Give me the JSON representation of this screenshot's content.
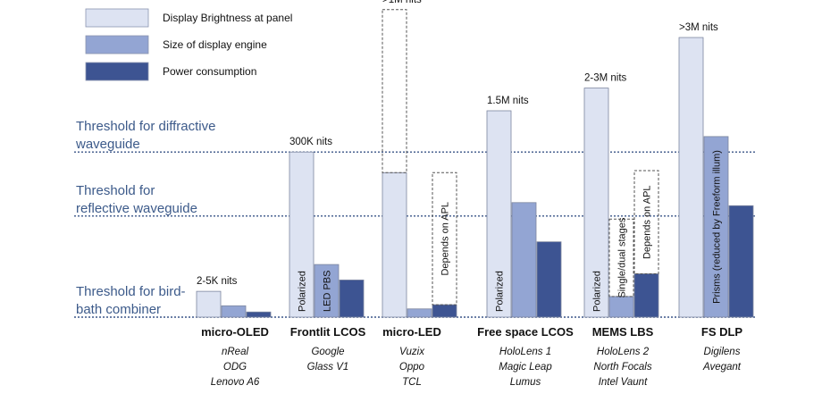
{
  "chart_data": {
    "type": "bar",
    "legend": [
      {
        "name": "Display Brightness at panel",
        "color": "#dde3f2"
      },
      {
        "name": "Size of display engine",
        "color": "#93a5d3"
      },
      {
        "name": "Power consumption",
        "color": "#3d5492"
      }
    ],
    "thresholds": [
      {
        "label_lines": [
          "Threshold for diffractive",
          "waveguide"
        ],
        "level": 0.8
      },
      {
        "label_lines": [
          "Threshold for",
          "reflective waveguide"
        ],
        "level": 0.49
      },
      {
        "label_lines": [
          "Threshold for bird-",
          "bath combiner"
        ],
        "level": 0.0
      }
    ],
    "groups": [
      {
        "category": "micro-OLED",
        "examples": [
          "nReal",
          "ODG",
          "Lenovo A6"
        ],
        "brightness_label": "2-5K  nits",
        "bars": [
          {
            "series": "brightness",
            "value": 0.125,
            "dashed": false,
            "text": ""
          },
          {
            "series": "size",
            "value": 0.055,
            "dashed": false,
            "text": ""
          },
          {
            "series": "power",
            "value": 0.025,
            "dashed": false,
            "text": ""
          }
        ]
      },
      {
        "category": "Frontlit LCOS",
        "examples": [
          "Google",
          "Glass V1"
        ],
        "brightness_label": "300K  nits",
        "bars": [
          {
            "series": "brightness",
            "value": 0.8,
            "dashed": false,
            "text": "Polarized"
          },
          {
            "series": "size",
            "value": 0.255,
            "dashed": false,
            "text": "LED PBS"
          },
          {
            "series": "power",
            "value": 0.18,
            "dashed": false,
            "text": ""
          }
        ]
      },
      {
        "category": "micro-LED",
        "examples": [
          "Vuzix",
          "Oppo",
          "TCL"
        ],
        "brightness_label": ">1M nits",
        "bars": [
          {
            "series": "brightness",
            "value": 0.7,
            "dashed": false,
            "text": "",
            "dashed_top": 1.49
          },
          {
            "series": "size",
            "value": 0.04,
            "dashed": false,
            "text": ""
          },
          {
            "series": "power",
            "value": 0.06,
            "dashed": false,
            "text": "",
            "dashed_top": 0.7,
            "dashed_text": "Depends on APL"
          }
        ]
      },
      {
        "category": "Free space LCOS",
        "examples": [
          "HoloLens 1",
          "Magic Leap",
          "Lumus"
        ],
        "brightness_label": "1.5M nits",
        "bars": [
          {
            "series": "brightness",
            "value": 1.0,
            "dashed": false,
            "text": "Polarized"
          },
          {
            "series": "size",
            "value": 0.555,
            "dashed": false,
            "text": ""
          },
          {
            "series": "power",
            "value": 0.365,
            "dashed": false,
            "text": ""
          }
        ]
      },
      {
        "category": "MEMS LBS",
        "examples": [
          "HoloLens 2",
          "North Focals",
          "Intel Vaunt"
        ],
        "brightness_label": "2-3M nits",
        "bars": [
          {
            "series": "brightness",
            "value": 1.11,
            "dashed": false,
            "text": "Polarized"
          },
          {
            "series": "size",
            "value": 0.1,
            "dashed": false,
            "text": "",
            "dashed_top": 0.475,
            "dashed_text": "Single/dual stages"
          },
          {
            "series": "power",
            "value": 0.21,
            "dashed": false,
            "text": "",
            "dashed_top": 0.71,
            "dashed_text": "Depends on APL"
          }
        ]
      },
      {
        "category": "FS DLP",
        "examples": [
          "Digilens",
          "Avegant"
        ],
        "brightness_label": ">3M nits",
        "bars": [
          {
            "series": "brightness",
            "value": 1.355,
            "dashed": false,
            "text": ""
          },
          {
            "series": "size",
            "value": 0.875,
            "dashed": false,
            "text": "Prisms (reduced by Freeform illum)"
          },
          {
            "series": "power",
            "value": 0.54,
            "dashed": false,
            "text": ""
          }
        ]
      }
    ],
    "grid": false,
    "legend_position": "top-left"
  }
}
